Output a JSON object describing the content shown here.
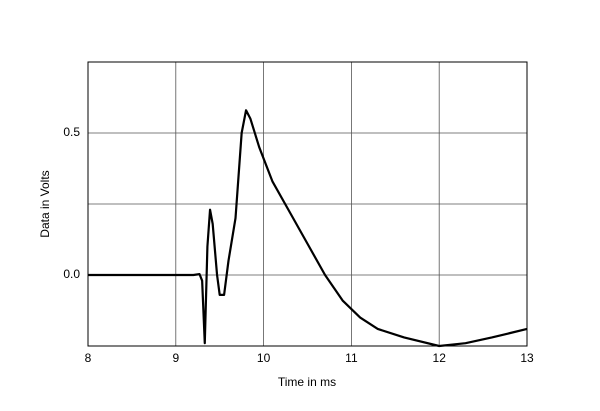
{
  "chart_data": {
    "type": "line",
    "xlabel": "Time in ms",
    "ylabel": "Data in Volts",
    "xlim": [
      8,
      13
    ],
    "xticks": [
      8,
      9,
      10,
      11,
      12,
      13
    ],
    "ylim": [
      -0.25,
      0.75
    ],
    "yticks": [
      {
        "value": 0,
        "label": "0.0"
      },
      {
        "value": 0.25,
        "label": null
      },
      {
        "value": 0.5,
        "label": "0.5"
      }
    ],
    "grid": true,
    "series": [
      {
        "name": null,
        "color": "#000000",
        "x": [
          8.0,
          9.2,
          9.27,
          9.3,
          9.33,
          9.36,
          9.39,
          9.42,
          9.47,
          9.5,
          9.55,
          9.6,
          9.68,
          9.75,
          9.8,
          9.85,
          9.95,
          10.1,
          10.3,
          10.5,
          10.7,
          10.9,
          11.1,
          11.3,
          11.6,
          12.0,
          12.3,
          12.6,
          13.0
        ],
        "values": [
          0,
          0,
          0.003,
          -0.02,
          -0.24,
          0.1,
          0.23,
          0.18,
          0.0,
          -0.07,
          -0.07,
          0.05,
          0.2,
          0.5,
          0.58,
          0.55,
          0.45,
          0.33,
          0.22,
          0.11,
          0.0,
          -0.09,
          -0.15,
          -0.19,
          -0.22,
          -0.25,
          -0.24,
          -0.22,
          -0.19
        ]
      }
    ]
  }
}
